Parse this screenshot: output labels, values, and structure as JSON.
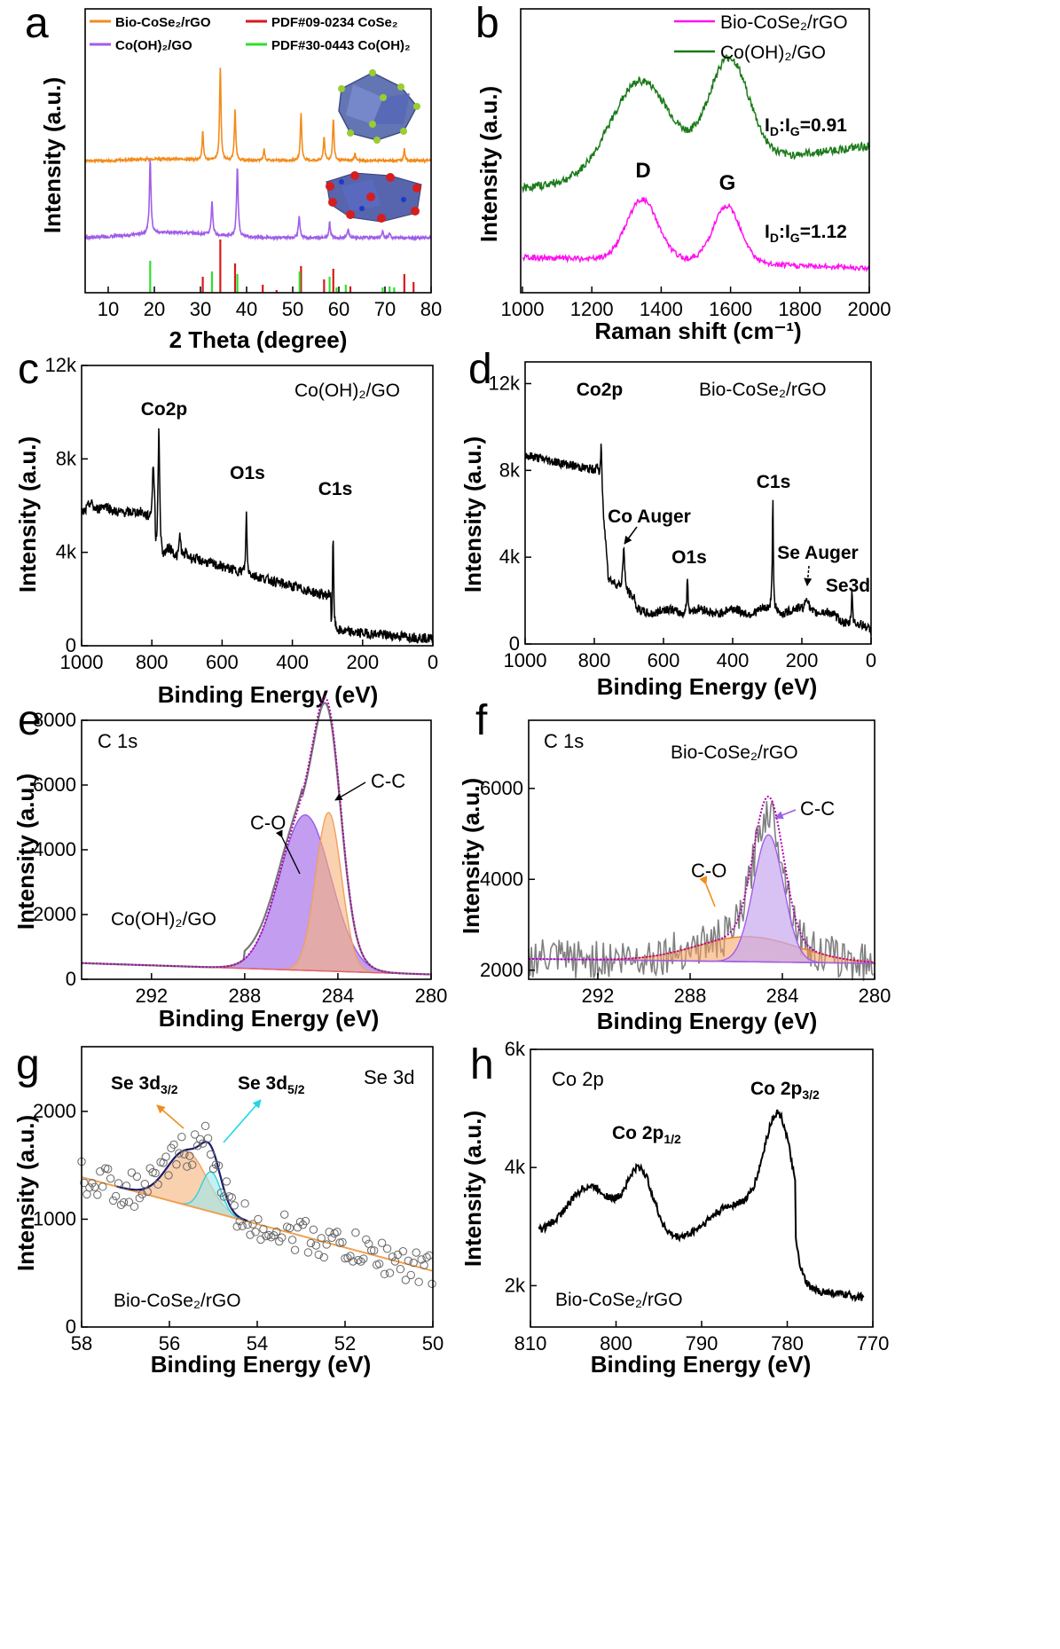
{
  "chart_data": [
    {
      "type": "line",
      "panel": "a",
      "xlabel": "2 Theta (degree)",
      "ylabel": "Intensity (a.u.)",
      "xlim": [
        5,
        80
      ],
      "xticks": [
        10,
        20,
        30,
        40,
        50,
        60,
        70,
        80
      ],
      "legend": [
        {
          "text": "Bio-CoSe₂/rGO",
          "color": "#f28c1c"
        },
        {
          "text": "PDF#09-0234  CoSe₂",
          "color": "#d7191c"
        },
        {
          "text": "Co(OH)₂/GO",
          "color": "#a05ee8"
        },
        {
          "text": "PDF#30-0443  Co(OH)₂",
          "color": "#2ee02e"
        }
      ],
      "series": [
        {
          "color": "#f28c1c",
          "peaks": [
            [
              30.5,
              0.3
            ],
            [
              34.3,
              1.0
            ],
            [
              37.5,
              0.55
            ],
            [
              43.8,
              0.12
            ],
            [
              51.8,
              0.5
            ],
            [
              56.8,
              0.25
            ],
            [
              58.8,
              0.45
            ],
            [
              63.5,
              0.08
            ],
            [
              74.2,
              0.12
            ]
          ]
        },
        {
          "color": "#a05ee8",
          "peaks": [
            [
              19.1,
              1.0
            ],
            [
              32.5,
              0.45
            ],
            [
              38.0,
              0.95
            ],
            [
              51.4,
              0.3
            ],
            [
              58.0,
              0.2
            ],
            [
              62.0,
              0.12
            ],
            [
              69.5,
              0.08
            ],
            [
              71.0,
              0.06
            ]
          ]
        },
        {
          "color": "#d7191c",
          "peaks": [
            [
              30.5,
              0.3
            ],
            [
              34.3,
              1.0
            ],
            [
              37.5,
              0.55
            ],
            [
              43.5,
              0.15
            ],
            [
              46.5,
              0.05
            ],
            [
              51.8,
              0.5
            ],
            [
              56.8,
              0.25
            ],
            [
              58.8,
              0.45
            ],
            [
              62.5,
              0.12
            ],
            [
              74.2,
              0.35
            ],
            [
              76.2,
              0.2
            ]
          ]
        },
        {
          "color": "#2ee02e",
          "peaks": [
            [
              19.1,
              0.6
            ],
            [
              32.5,
              0.4
            ],
            [
              38.0,
              0.35
            ],
            [
              51.5,
              0.4
            ],
            [
              58.0,
              0.3
            ],
            [
              59.5,
              0.1
            ],
            [
              61.5,
              0.15
            ],
            [
              69.5,
              0.1
            ],
            [
              71.0,
              0.12
            ],
            [
              72.0,
              0.1
            ]
          ]
        }
      ]
    },
    {
      "type": "line",
      "panel": "b",
      "xlabel": "Raman shift (cm⁻¹)",
      "ylabel": "Intensity (a.u.)",
      "xlim": [
        1000,
        2000
      ],
      "xticks": [
        1000,
        1200,
        1400,
        1600,
        1800,
        2000
      ],
      "legend": [
        {
          "text": "Bio-CoSe₂/rGO",
          "color": "#ff10f0"
        },
        {
          "text": "Co(OH)₂/GO",
          "color": "#1a7a1a"
        }
      ],
      "series": [
        {
          "name": "Co(OH)₂/GO",
          "color": "#1a7a1a",
          "peaks": [
            [
              1340,
              0.55,
              80
            ],
            [
              1595,
              0.62,
              55
            ]
          ]
        },
        {
          "name": "Bio-CoSe₂/rGO",
          "color": "#ff10f0",
          "peaks": [
            [
              1345,
              0.58,
              55
            ],
            [
              1590,
              0.56,
              45
            ]
          ]
        }
      ],
      "annotations": [
        "D",
        "G",
        "I_D:I_G=0.91",
        "I_D:I_G=1.12"
      ]
    },
    {
      "type": "line",
      "panel": "c",
      "title": "Co(OH)₂/GO",
      "xlabel": "Binding Energy (eV)",
      "ylabel": "Intensity (a.u.)",
      "xlim": [
        1000,
        0
      ],
      "ylim": [
        0,
        12000
      ],
      "xticks": [
        1000,
        800,
        600,
        400,
        200,
        0
      ],
      "yticks": [
        "0",
        "4k",
        "8k",
        "12k"
      ],
      "peaks": [
        {
          "label": "Co2p",
          "x": 780,
          "y": 9400
        },
        {
          "label": "O1s",
          "x": 531,
          "y": 6600
        },
        {
          "label": "C1s",
          "x": 284,
          "y": 6000
        }
      ]
    },
    {
      "type": "line",
      "panel": "d",
      "title": "Bio-CoSe₂/rGO",
      "xlabel": "Binding Energy (eV)",
      "ylabel": "Intensity (a.u.)",
      "xlim": [
        1000,
        0
      ],
      "ylim": [
        0,
        13000
      ],
      "xticks": [
        1000,
        800,
        600,
        400,
        200,
        0
      ],
      "yticks": [
        "0",
        "4k",
        "8k",
        "12k"
      ],
      "peaks": [
        {
          "label": "Co2p",
          "x": 780,
          "y": 10800
        },
        {
          "label": "Co Auger",
          "x": 715,
          "y": 4300
        },
        {
          "label": "O1s",
          "x": 531,
          "y": 3200
        },
        {
          "label": "C1s",
          "x": 284,
          "y": 6800
        },
        {
          "label": "Se Auger",
          "x": 185,
          "y": 2500
        },
        {
          "label": "Se3d",
          "x": 55,
          "y": 1800
        }
      ]
    },
    {
      "type": "line",
      "panel": "e",
      "title": "C 1s",
      "subtitle": "Co(OH)₂/GO",
      "xlabel": "Binding Energy (eV)",
      "ylabel": "Intensity (a.u.)",
      "xlim": [
        295,
        280
      ],
      "ylim": [
        0,
        8000
      ],
      "xticks": [
        292,
        288,
        284,
        280
      ],
      "yticks": [
        0,
        2000,
        4000,
        6000,
        8000
      ],
      "components": [
        {
          "label": "C-C",
          "center": 284.4,
          "height": 5000
        },
        {
          "label": "C-O",
          "center": 285.4,
          "height": 4800
        }
      ],
      "baseline": [
        [
          295,
          500
        ],
        [
          280,
          150
        ]
      ]
    },
    {
      "type": "line",
      "panel": "f",
      "title": "C 1s",
      "subtitle": "Bio-CoSe₂/rGO",
      "xlabel": "Binding Energy (eV)",
      "ylabel": "Intensity (a.u.)",
      "xlim": [
        295,
        280
      ],
      "ylim": [
        1800,
        7500
      ],
      "xticks": [
        292,
        288,
        284,
        280
      ],
      "yticks": [
        2000,
        4000,
        6000
      ],
      "components": [
        {
          "label": "C-C",
          "center": 284.6,
          "height": 2900
        },
        {
          "label": "C-O",
          "center": 285.5,
          "height": 550
        }
      ],
      "baseline": [
        [
          295,
          2250
        ],
        [
          280,
          2150
        ]
      ]
    },
    {
      "type": "scatter",
      "panel": "g",
      "title": "Se 3d",
      "subtitle": "Bio-CoSe₂/rGO",
      "xlabel": "Binding Energy (eV)",
      "ylabel": "Intensity (a.u.)",
      "xlim": [
        58,
        50
      ],
      "ylim": [
        0,
        2600
      ],
      "xticks": [
        58,
        56,
        54,
        52,
        50
      ],
      "yticks": [
        0,
        1000,
        2000
      ],
      "components": [
        {
          "label": "Se 3d₃/₂",
          "center": 55.6,
          "height": 500
        },
        {
          "label": "Se 3d₅/₂",
          "center": 55.05,
          "height": 370
        }
      ],
      "baseline": [
        [
          58,
          1390
        ],
        [
          50,
          520
        ]
      ]
    },
    {
      "type": "line",
      "panel": "h",
      "title": "Co 2p",
      "subtitle": "Bio-CoSe₂/rGO",
      "xlabel": "Binding Energy (eV)",
      "ylabel": "Intensity (a.u.)",
      "xlim": [
        810,
        770
      ],
      "ylim": [
        1300,
        6000
      ],
      "xticks": [
        810,
        800,
        790,
        780,
        770
      ],
      "yticks": [
        "2k",
        "4k",
        "6k"
      ],
      "peaks": [
        {
          "label": "Co 2p₁/₂",
          "x": 797,
          "y": 3900
        },
        {
          "label": "Co 2p₃/₂",
          "x": 781,
          "y": 4800
        }
      ]
    }
  ],
  "panels": {
    "a": {
      "letter": "a",
      "xlabel": "2 Theta (degree)",
      "ylabel": "Intensity (a.u.)",
      "legend": [
        "Bio-CoSe₂/rGO",
        "PDF#09-0234  CoSe₂",
        "Co(OH)₂/GO",
        "PDF#30-0443  Co(OH)₂"
      ]
    },
    "b": {
      "letter": "b",
      "xlabel": "Raman shift (cm⁻¹)",
      "ylabel": "Intensity (a.u.)",
      "legend": [
        "Bio-CoSe₂/rGO",
        "Co(OH)₂/GO"
      ],
      "ann_d": "D",
      "ann_g": "G",
      "ratio1": "I_D:I_G=0.91",
      "ratio2": "I_D:I_G=1.12"
    },
    "c": {
      "letter": "c",
      "xlabel": "Binding Energy (eV)",
      "ylabel": "Intensity (a.u.)",
      "title": "Co(OH)₂/GO",
      "co2p": "Co2p",
      "o1s": "O1s",
      "c1s": "C1s"
    },
    "d": {
      "letter": "d",
      "xlabel": "Binding Energy (eV)",
      "ylabel": "Intensity (a.u.)",
      "title": "Bio-CoSe₂/rGO",
      "co2p": "Co2p",
      "coauger": "Co Auger",
      "o1s": "O1s",
      "c1s": "C1s",
      "seauger": "Se Auger",
      "se3d": "Se3d"
    },
    "e": {
      "letter": "e",
      "xlabel": "Binding Energy (eV)",
      "ylabel": "Intensity (a.u.)",
      "title": "C 1s",
      "sample": "Co(OH)₂/GO",
      "cc": "C-C",
      "co": "C-O"
    },
    "f": {
      "letter": "f",
      "xlabel": "Binding Energy (eV)",
      "ylabel": "Intensity (a.u.)",
      "title": "C 1s",
      "sample": "Bio-CoSe₂/rGO",
      "cc": "C-C",
      "co": "C-O"
    },
    "g": {
      "letter": "g",
      "xlabel": "Binding Energy (eV)",
      "ylabel": "Intensity (a.u.)",
      "title": "Se 3d",
      "sample": "Bio-CoSe₂/rGO",
      "se32": "Se 3d₃/₂",
      "se52": "Se 3d₅/₂"
    },
    "h": {
      "letter": "h",
      "xlabel": "Binding Energy (eV)",
      "ylabel": "Intensity (a.u.)",
      "title": "Co 2p",
      "sample": "Bio-CoSe₂/rGO",
      "p12": "Co 2p₁/₂",
      "p32": "Co 2p₃/₂"
    }
  }
}
